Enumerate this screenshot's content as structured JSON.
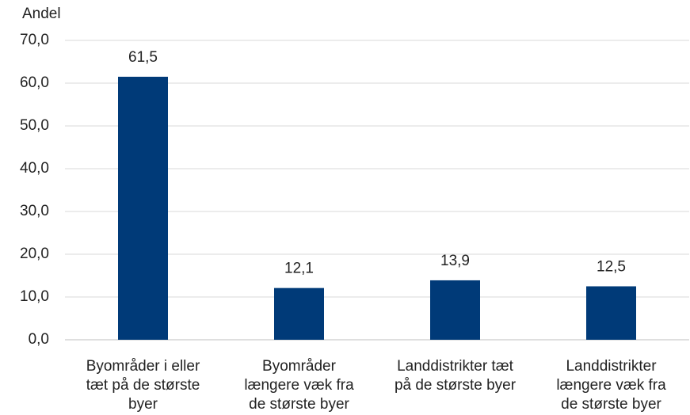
{
  "chart_data": {
    "type": "bar",
    "y_label": "Andel",
    "categories": [
      [
        "Byområder i eller",
        "tæt på de største",
        "byer"
      ],
      [
        "Byområder",
        "længere væk fra",
        "de største byer"
      ],
      [
        "Landdistrikter tæt",
        "på de største byer"
      ],
      [
        "Landdistrikter",
        "længere væk fra",
        "de største byer"
      ]
    ],
    "values": [
      61.5,
      12.1,
      13.9,
      12.5
    ],
    "value_labels": [
      "61,5",
      "12,1",
      "13,9",
      "12,5"
    ],
    "color": "#003a78",
    "ylim": [
      0,
      70
    ],
    "yticks": [
      {
        "value": 0,
        "label": "0,0"
      },
      {
        "value": 10,
        "label": "10,0"
      },
      {
        "value": 20,
        "label": "20,0"
      },
      {
        "value": 30,
        "label": "30,0"
      },
      {
        "value": 40,
        "label": "40,0"
      },
      {
        "value": 50,
        "label": "50,0"
      },
      {
        "value": 60,
        "label": "60,0"
      },
      {
        "value": 70,
        "label": "70,0"
      }
    ],
    "grid": true
  }
}
